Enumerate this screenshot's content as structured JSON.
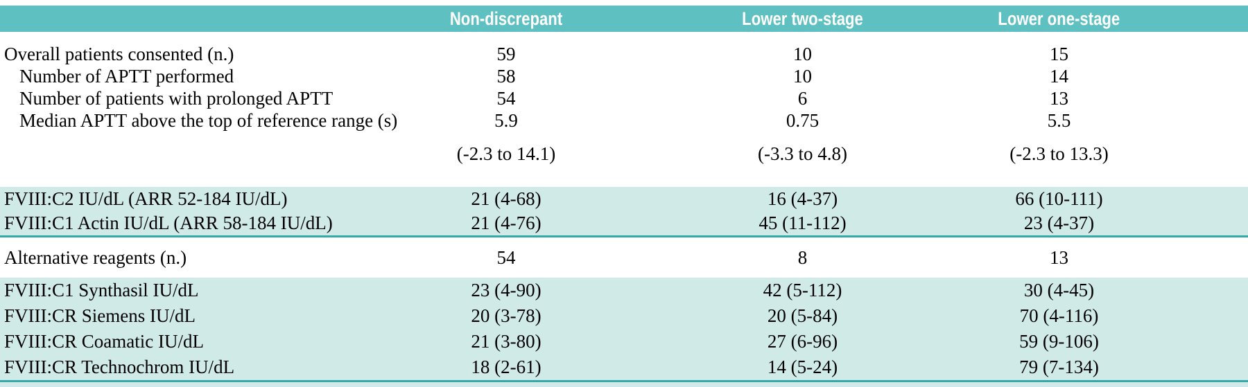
{
  "colors": {
    "header_bg": "#5ec0c0",
    "header_text": "#ffffff",
    "highlight_bg": "#d0eae8",
    "rule_color": "#35a8a8",
    "body_text": "#000000"
  },
  "table": {
    "columns": [
      "",
      "Non-discrepant",
      "Lower two-stage",
      "Lower one-stage"
    ],
    "rows": [
      {
        "label": "Overall patients consented (n.)",
        "values": [
          "59",
          "10",
          "15"
        ]
      },
      {
        "label": "Number of APTT performed",
        "values": [
          "58",
          "10",
          "14"
        ]
      },
      {
        "label": "Number of patients with prolonged APTT",
        "values": [
          "54",
          "6",
          "13"
        ]
      },
      {
        "label": "Median APTT above the top of reference range (s)",
        "values": [
          "5.9",
          "0.75",
          "5.5"
        ]
      },
      {
        "label": "",
        "values": [
          "(-2.3 to 14.1)",
          "(-3.3 to 4.8)",
          "(-2.3 to 13.3)"
        ]
      },
      {
        "label": "FVIII:C2 IU/dL (ARR 52-184 IU/dL)",
        "values": [
          "21 (4-68)",
          "16 (4-37)",
          "66 (10-111)"
        ]
      },
      {
        "label": "FVIII:C1 Actin IU/dL (ARR 58-184 IU/dL)",
        "values": [
          "21 (4-76)",
          "45 (11-112)",
          "23 (4-37)"
        ]
      },
      {
        "label": "Alternative reagents (n.)",
        "values": [
          "54",
          "8",
          "13"
        ]
      },
      {
        "label": "FVIII:C1 Synthasil IU/dL",
        "values": [
          "23 (4-90)",
          "42 (5-112)",
          "30 (4-45)"
        ]
      },
      {
        "label": "FVIII:CR Siemens IU/dL",
        "values": [
          "20 (3-78)",
          "20 (5-84)",
          "70 (4-116)"
        ]
      },
      {
        "label": "FVIII:CR Coamatic IU/dL",
        "values": [
          "21 (3-80)",
          "27 (6-96)",
          "59 (9-106)"
        ]
      },
      {
        "label": "FVIII:CR Technochrom IU/dL",
        "values": [
          "18 (2-61)",
          "14 (5-24)",
          "79 (7-134)"
        ]
      }
    ]
  }
}
